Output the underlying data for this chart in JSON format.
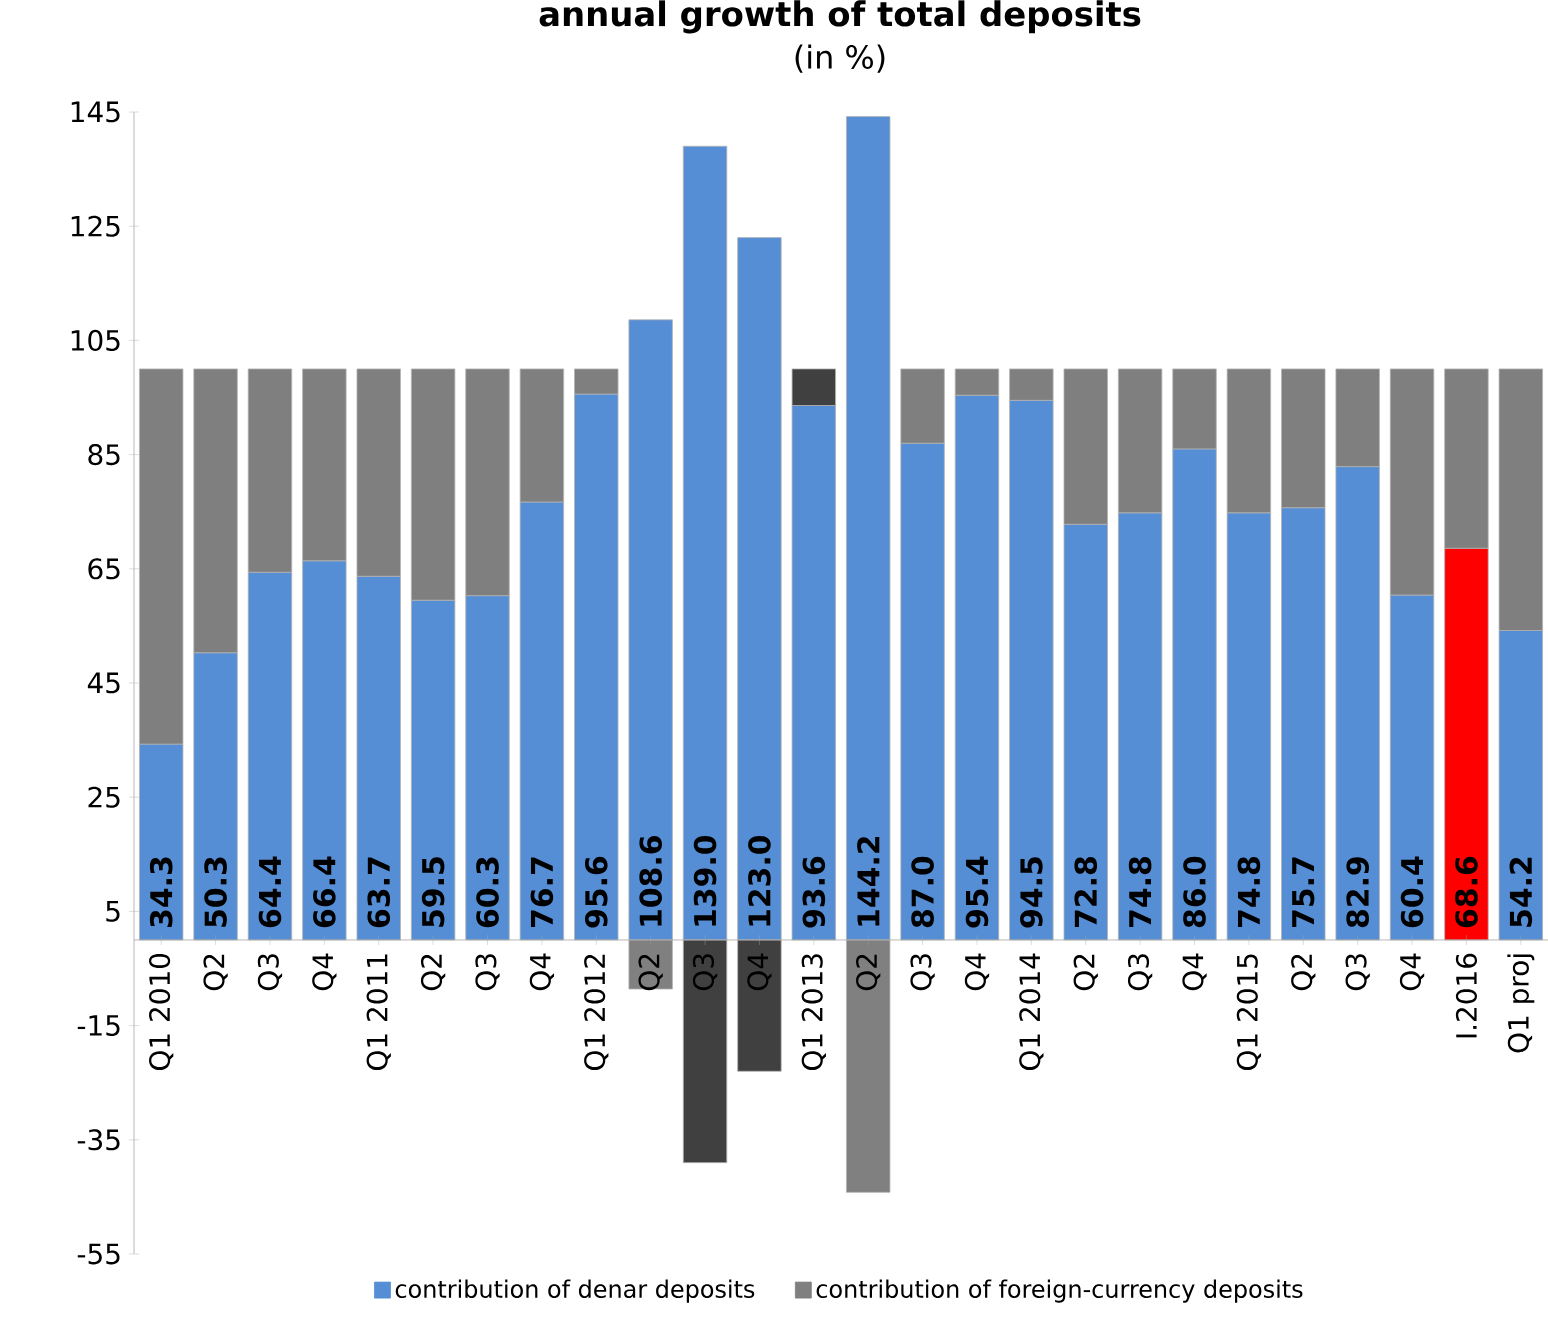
{
  "chart_data": {
    "type": "bar",
    "stacked": true,
    "title": "annual growth of total deposits",
    "subtitle": "(in %)",
    "categories": [
      "Q1 2010",
      "Q2",
      "Q3",
      "Q4",
      "Q1 2011",
      "Q2",
      "Q3",
      "Q4",
      "Q1 2012",
      "Q2",
      "Q3",
      "Q4",
      "Q1 2013",
      "Q2",
      "Q3",
      "Q4",
      "Q1 2014",
      "Q2",
      "Q3",
      "Q4",
      "Q1 2015",
      "Q2",
      "Q3",
      "Q4",
      "I.2016",
      "Q1 proj"
    ],
    "series": [
      {
        "name": "contribution of denar deposits",
        "color": "#558ed5",
        "colors": [
          "#558ed5",
          "#558ed5",
          "#558ed5",
          "#558ed5",
          "#558ed5",
          "#558ed5",
          "#558ed5",
          "#558ed5",
          "#558ed5",
          "#558ed5",
          "#558ed5",
          "#558ed5",
          "#558ed5",
          "#558ed5",
          "#558ed5",
          "#558ed5",
          "#558ed5",
          "#558ed5",
          "#558ed5",
          "#558ed5",
          "#558ed5",
          "#558ed5",
          "#558ed5",
          "#558ed5",
          "#ff0000",
          "#558ed5"
        ],
        "values": [
          34.3,
          50.3,
          64.4,
          66.4,
          63.7,
          59.5,
          60.3,
          76.7,
          95.6,
          108.6,
          139.0,
          123.0,
          93.6,
          144.2,
          87.0,
          95.4,
          94.5,
          72.8,
          74.8,
          86.0,
          74.8,
          75.7,
          82.9,
          60.4,
          68.6,
          54.2
        ],
        "value_labels": [
          "34.3",
          "50.3",
          "64.4",
          "66.4",
          "63.7",
          "59.5",
          "60.3",
          "76.7",
          "95.6",
          "108.6",
          "139.0",
          "123.0",
          "93.6",
          "144.2",
          "87.0",
          "95.4",
          "94.5",
          "72.8",
          "74.8",
          "86.0",
          "74.8",
          "75.7",
          "82.9",
          "60.4",
          "68.6",
          "54.2"
        ]
      },
      {
        "name": "contribution of foreign-currency deposits",
        "color": "#7f7f7f",
        "colors": [
          "#7f7f7f",
          "#7f7f7f",
          "#7f7f7f",
          "#7f7f7f",
          "#7f7f7f",
          "#7f7f7f",
          "#7f7f7f",
          "#7f7f7f",
          "#7f7f7f",
          "#808080",
          "#404040",
          "#404040",
          "#404040",
          "#808080",
          "#7f7f7f",
          "#7f7f7f",
          "#7f7f7f",
          "#7f7f7f",
          "#7f7f7f",
          "#7f7f7f",
          "#7f7f7f",
          "#7f7f7f",
          "#7f7f7f",
          "#7f7f7f",
          "#7f7f7f",
          "#7f7f7f"
        ],
        "values": [
          65.7,
          49.7,
          35.6,
          33.6,
          36.3,
          40.5,
          39.7,
          23.3,
          4.4,
          -8.6,
          -39.0,
          -23.0,
          6.4,
          -44.2,
          13.0,
          4.6,
          5.5,
          27.2,
          25.2,
          14.0,
          25.2,
          24.3,
          17.1,
          39.6,
          31.4,
          45.8
        ]
      }
    ],
    "ylim": [
      -55,
      145
    ],
    "yticks": [
      -55,
      -35,
      -15,
      5,
      25,
      45,
      65,
      85,
      105,
      125,
      145
    ],
    "grid": false,
    "legend": "bottom"
  }
}
